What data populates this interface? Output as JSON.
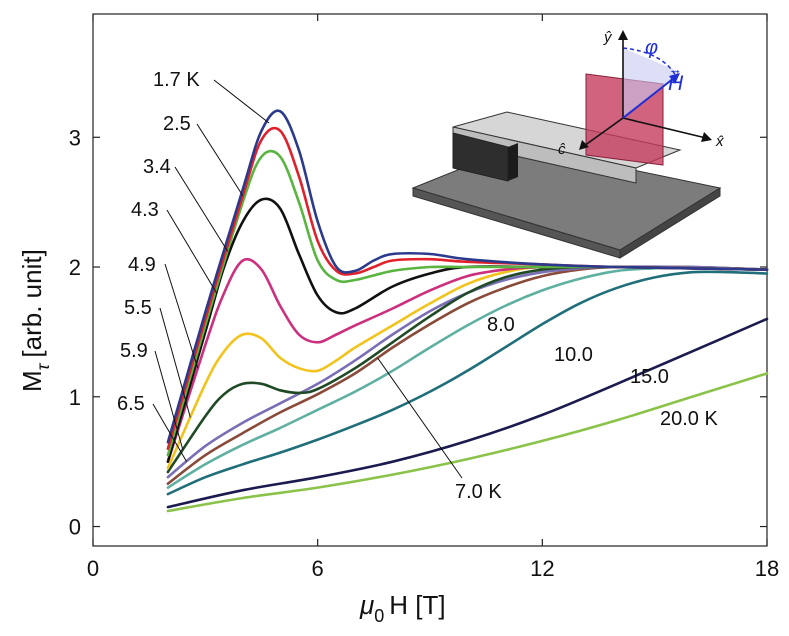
{
  "chart_data": {
    "type": "line",
    "xlabel": "μ0 H [T]",
    "xlabel_parts": {
      "mu": "μ",
      "sub": "0",
      "rest": "H [T]"
    },
    "ylabel": "Mτ [arb. unit]",
    "ylabel_parts": {
      "main": "M",
      "sub": "τ",
      "rest": "[arb. unit]"
    },
    "xlim": [
      0,
      18
    ],
    "ylim": [
      -0.15,
      3.95
    ],
    "xticks": [
      0,
      6,
      12,
      18
    ],
    "yticks": [
      0,
      1,
      2,
      3
    ],
    "grid": false,
    "series": [
      {
        "name": "1.7 K",
        "label": "1.7 K",
        "color": "#2b3a8c",
        "x": [
          2,
          3,
          4,
          4.5,
          5,
          5.5,
          6,
          6.5,
          7,
          7.5,
          8,
          9,
          10,
          12,
          14,
          18
        ],
        "y": [
          0.65,
          1.65,
          2.6,
          3.05,
          3.2,
          2.9,
          2.35,
          2.0,
          1.97,
          2.05,
          2.1,
          2.1,
          2.06,
          2.02,
          2.0,
          1.98
        ]
      },
      {
        "name": "2.5",
        "label": "2.5",
        "color": "#e0202a",
        "x": [
          2,
          3,
          4,
          4.5,
          5,
          5.5,
          6,
          6.5,
          7,
          7.5,
          8,
          9,
          10,
          12,
          14,
          18
        ],
        "y": [
          0.6,
          1.6,
          2.55,
          2.98,
          3.05,
          2.7,
          2.2,
          1.97,
          1.95,
          2.0,
          2.05,
          2.06,
          2.04,
          2.02,
          2.0,
          1.98
        ]
      },
      {
        "name": "3.4",
        "label": "3.4",
        "color": "#59b540",
        "x": [
          2,
          3,
          4,
          4.5,
          5,
          5.5,
          6,
          6.5,
          7,
          8,
          9,
          10,
          12,
          14,
          18
        ],
        "y": [
          0.55,
          1.55,
          2.5,
          2.85,
          2.85,
          2.5,
          2.05,
          1.9,
          1.9,
          1.97,
          2.0,
          2.0,
          2.0,
          2.0,
          1.98
        ]
      },
      {
        "name": "4.3",
        "label": "4.3",
        "color": "#111111",
        "x": [
          2,
          3,
          3.5,
          4,
          4.5,
          5,
          5.5,
          6,
          6.5,
          7,
          8,
          9,
          10,
          12,
          14,
          18
        ],
        "y": [
          0.5,
          1.5,
          2.0,
          2.35,
          2.52,
          2.45,
          2.1,
          1.78,
          1.65,
          1.68,
          1.85,
          1.95,
          2.0,
          2.0,
          2.0,
          1.98
        ]
      },
      {
        "name": "4.9",
        "label": "4.9",
        "color": "#cc2f7e",
        "x": [
          2,
          3,
          3.5,
          4,
          4.5,
          5,
          5.5,
          6,
          6.5,
          7,
          8,
          9,
          10,
          11,
          12,
          14,
          18
        ],
        "y": [
          0.5,
          1.4,
          1.8,
          2.05,
          1.98,
          1.7,
          1.48,
          1.42,
          1.48,
          1.55,
          1.68,
          1.82,
          1.93,
          1.98,
          2.0,
          2.0,
          1.98
        ]
      },
      {
        "name": "5.5",
        "label": "5.5",
        "color": "#f2c31c",
        "x": [
          2,
          3,
          3.5,
          4,
          4.5,
          5,
          5.5,
          6,
          6.5,
          7,
          8,
          9,
          10,
          11,
          12,
          14,
          18
        ],
        "y": [
          0.45,
          1.1,
          1.35,
          1.48,
          1.45,
          1.3,
          1.22,
          1.2,
          1.28,
          1.38,
          1.55,
          1.72,
          1.87,
          1.96,
          2.0,
          2.0,
          1.98
        ]
      },
      {
        "name": "5.9",
        "label": "5.9",
        "color": "#1f4a25",
        "x": [
          2,
          3,
          3.5,
          4,
          4.5,
          5,
          5.5,
          6,
          7,
          8,
          9,
          10,
          11,
          12,
          13,
          14,
          18
        ],
        "y": [
          0.42,
          0.85,
          1.02,
          1.1,
          1.1,
          1.05,
          1.03,
          1.06,
          1.22,
          1.42,
          1.62,
          1.8,
          1.92,
          1.98,
          2.0,
          2.0,
          1.98
        ]
      },
      {
        "name": "6.5",
        "label": "6.5",
        "color": "#7a6fb5",
        "x": [
          2,
          3,
          4,
          5,
          6,
          7,
          8,
          9,
          10,
          11,
          12,
          13,
          14,
          16,
          18
        ],
        "y": [
          0.38,
          0.62,
          0.8,
          0.95,
          1.1,
          1.28,
          1.48,
          1.66,
          1.8,
          1.9,
          1.96,
          1.99,
          2.0,
          2.0,
          1.98
        ]
      },
      {
        "name": "7.0 K",
        "label": "7.0 K",
        "color": "#8a4a3a",
        "x": [
          2,
          3,
          4,
          5,
          6,
          7,
          8,
          9,
          10,
          11,
          12,
          13,
          14,
          16,
          18
        ],
        "y": [
          0.33,
          0.55,
          0.72,
          0.88,
          1.02,
          1.18,
          1.38,
          1.56,
          1.72,
          1.84,
          1.93,
          1.98,
          2.0,
          2.0,
          1.98
        ]
      },
      {
        "name": "8.0",
        "label": "8.0",
        "color": "#5fb0a0",
        "x": [
          2,
          3,
          4,
          5,
          6,
          7,
          8,
          9,
          10,
          11,
          12,
          13,
          14,
          15,
          16,
          18
        ],
        "y": [
          0.3,
          0.48,
          0.63,
          0.76,
          0.9,
          1.04,
          1.2,
          1.38,
          1.55,
          1.7,
          1.82,
          1.91,
          1.97,
          1.99,
          2.0,
          1.98
        ]
      },
      {
        "name": "10.0",
        "label": "10.0",
        "color": "#1f6e7a",
        "x": [
          2,
          3,
          4,
          5,
          6,
          7,
          8,
          9,
          10,
          11,
          12,
          13,
          14,
          15,
          16,
          17,
          18
        ],
        "y": [
          0.25,
          0.38,
          0.48,
          0.57,
          0.67,
          0.78,
          0.9,
          1.04,
          1.2,
          1.38,
          1.56,
          1.72,
          1.84,
          1.92,
          1.96,
          1.96,
          1.95
        ]
      },
      {
        "name": "15.0",
        "label": "15.0",
        "color": "#1b1b4f",
        "x": [
          2,
          4,
          6,
          8,
          10,
          12,
          14,
          16,
          18
        ],
        "y": [
          0.15,
          0.28,
          0.38,
          0.5,
          0.66,
          0.86,
          1.1,
          1.35,
          1.6
        ]
      },
      {
        "name": "20.0 K",
        "label": "20.0 K",
        "color": "#8bc34a",
        "x": [
          2,
          4,
          6,
          8,
          10,
          12,
          14,
          16,
          18
        ],
        "y": [
          0.12,
          0.22,
          0.3,
          0.4,
          0.52,
          0.66,
          0.82,
          1.0,
          1.18
        ]
      }
    ],
    "inset": {
      "axis_x": "x̂",
      "axis_y": "ŷ",
      "axis_c": "ĉ",
      "angle": "φ",
      "field": "H",
      "field_arrow": "→",
      "colors": {
        "field": "#1f2fd6",
        "plate": "#c4375a",
        "platform": "#7a7a7a"
      }
    }
  }
}
